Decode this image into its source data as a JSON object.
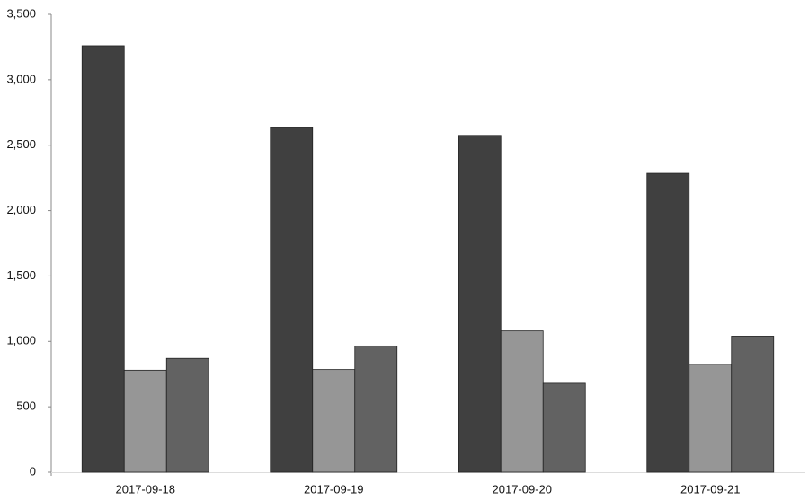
{
  "chart_data": {
    "type": "bar",
    "categories": [
      "2017-09-18",
      "2017-09-19",
      "2017-09-20",
      "2017-09-21"
    ],
    "series": [
      {
        "color": "#404040",
        "values": [
          3260,
          2635,
          2575,
          2285
        ]
      },
      {
        "color": "#969696",
        "values": [
          780,
          785,
          1080,
          825
        ]
      },
      {
        "color": "#626262",
        "values": [
          870,
          965,
          680,
          1040
        ]
      }
    ],
    "ylim": [
      0,
      3500
    ],
    "yticks": [
      0,
      500,
      {
        "value": 1000,
        "label": "1,000"
      },
      {
        "value": 1500,
        "label": "1,500"
      },
      {
        "value": 2000,
        "label": "2,000"
      },
      {
        "value": 2500,
        "label": "2,500"
      },
      {
        "value": 3000,
        "label": "3,000"
      },
      {
        "value": 3500,
        "label": "3,500"
      }
    ]
  }
}
